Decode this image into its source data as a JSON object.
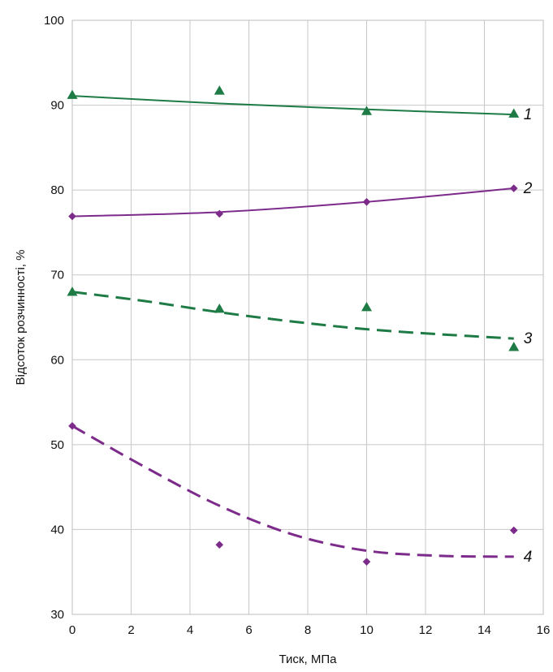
{
  "chart_data": {
    "type": "scatter",
    "xlabel": "Тиск, МПа",
    "ylabel": "Відсоток розчинності, %",
    "xlim": [
      0,
      16
    ],
    "ylim": [
      30,
      100
    ],
    "xticks": [
      "0",
      "2",
      "4",
      "6",
      "8",
      "10",
      "12",
      "14",
      "16"
    ],
    "yticks": [
      "30",
      "40",
      "50",
      "60",
      "70",
      "80",
      "90",
      "100"
    ],
    "grid": true,
    "series": [
      {
        "label": "1",
        "color": "#1e7b45",
        "marker": "triangle",
        "line": "solid",
        "x": [
          0,
          5,
          10,
          15
        ],
        "y": [
          91.2,
          91.7,
          89.3,
          89.0
        ],
        "trend_x": [
          0,
          5,
          10,
          15
        ],
        "trend_y": [
          91.1,
          90.2,
          89.5,
          88.9
        ]
      },
      {
        "label": "2",
        "color": "#7d2b8b",
        "marker": "diamond",
        "line": "solid",
        "x": [
          0,
          5,
          10,
          15
        ],
        "y": [
          76.9,
          77.2,
          78.6,
          80.2
        ],
        "trend_x": [
          0,
          5,
          10,
          15
        ],
        "trend_y": [
          76.9,
          77.4,
          78.6,
          80.2
        ]
      },
      {
        "label": "3",
        "color": "#1e7b45",
        "marker": "triangle",
        "line": "dashed",
        "x": [
          0,
          5,
          10,
          15
        ],
        "y": [
          68.0,
          66.0,
          66.2,
          61.5
        ],
        "trend_x": [
          0,
          2.5,
          5,
          7.5,
          10,
          12.5,
          15
        ],
        "trend_y": [
          68.0,
          66.9,
          65.6,
          64.5,
          63.6,
          63.0,
          62.5
        ]
      },
      {
        "label": "4",
        "color": "#7d2b8b",
        "marker": "diamond",
        "line": "dashed",
        "x": [
          0,
          5,
          10,
          15
        ],
        "y": [
          52.2,
          38.2,
          36.2,
          39.9
        ],
        "trend_x": [
          0,
          2.5,
          5,
          7.5,
          10,
          12.5,
          15
        ],
        "trend_y": [
          52.2,
          47.3,
          42.8,
          39.4,
          37.5,
          36.9,
          36.8
        ]
      }
    ]
  }
}
